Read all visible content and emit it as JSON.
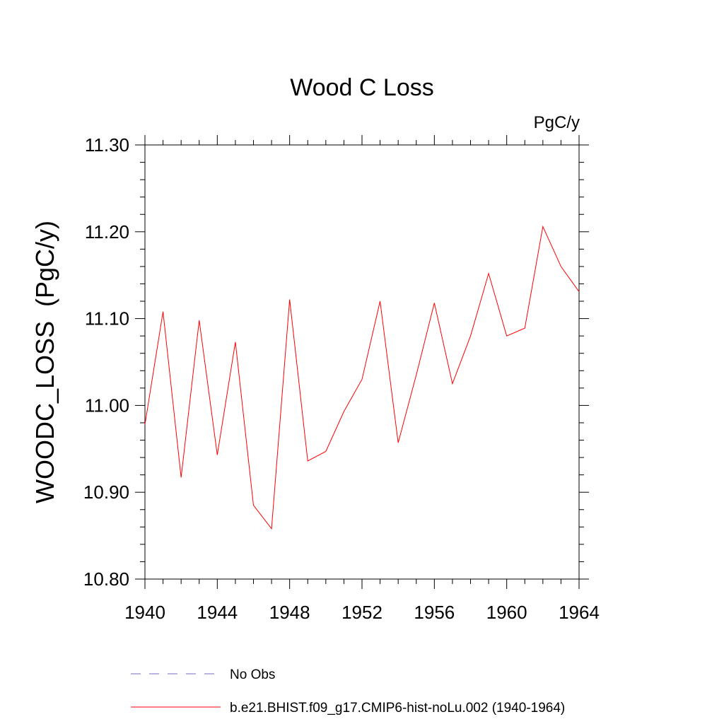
{
  "chart_data": {
    "type": "line",
    "title": "Wood C Loss",
    "units_label": "PgC/y",
    "xlabel": "",
    "ylabel": "WOODC_LOSS  (PgC/y)",
    "xlim": [
      1940,
      1964
    ],
    "ylim": [
      10.8,
      11.3
    ],
    "x_major_ticks": [
      1940,
      1944,
      1948,
      1952,
      1956,
      1960,
      1964
    ],
    "x_tick_labels": [
      "1940",
      "1944",
      "1948",
      "1952",
      "1956",
      "1960",
      "1964"
    ],
    "x_minor_step": 1,
    "y_major_ticks": [
      10.8,
      10.9,
      11.0,
      11.1,
      11.2,
      11.3
    ],
    "y_tick_labels": [
      "10.80",
      "10.90",
      "11.00",
      "11.10",
      "11.20",
      "11.30"
    ],
    "y_minor_step": 0.02,
    "grid": false,
    "legend_position": "bottom",
    "series": [
      {
        "name": "b.e21.BHIST.f09_g17.CMIP6-hist-noLu.002 (1940-1964)",
        "color": "#ff0000",
        "dash": "solid",
        "x": [
          1940,
          1941,
          1942,
          1943,
          1944,
          1945,
          1946,
          1947,
          1948,
          1949,
          1950,
          1951,
          1952,
          1953,
          1954,
          1955,
          1956,
          1957,
          1958,
          1959,
          1960,
          1961,
          1962,
          1963,
          1964
        ],
        "values": [
          10.978,
          11.108,
          10.917,
          11.098,
          10.943,
          11.073,
          10.885,
          10.858,
          11.122,
          10.936,
          10.947,
          10.993,
          11.03,
          11.12,
          10.957,
          11.035,
          11.118,
          11.025,
          11.08,
          11.152,
          11.08,
          11.089,
          11.206,
          11.16,
          11.131
        ]
      }
    ],
    "legend": [
      {
        "label": "No Obs",
        "color": "#7b68c8",
        "dash": "dashed"
      },
      {
        "label": "b.e21.BHIST.f09_g17.CMIP6-hist-noLu.002 (1940-1964)",
        "color": "#ff0000",
        "dash": "solid"
      }
    ]
  }
}
